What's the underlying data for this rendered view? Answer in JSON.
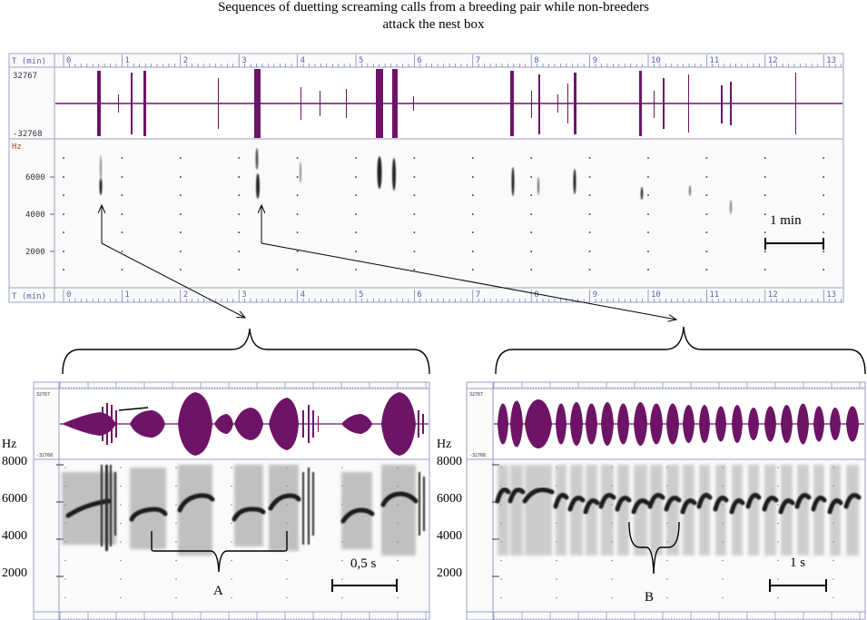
{
  "title": {
    "line1": "Sequences of duetting screaming calls from a breeding pair while non-breeders",
    "line2": "attack the nest box"
  },
  "overview": {
    "time_axis_label": "T (min)",
    "time_ticks": [
      "0",
      "1",
      "2",
      "3",
      "4",
      "5",
      "6",
      "7",
      "8",
      "9",
      "10",
      "11",
      "12",
      "13"
    ],
    "amp_max": "32767",
    "amp_min": "-32768",
    "freq_unit": "Hz",
    "freq_ticks": [
      "6000",
      "4000",
      "2000"
    ],
    "scale_bar": "1 min"
  },
  "panel_a": {
    "amp_max": "32767",
    "amp_min": "-32768",
    "freq_unit": "Hz",
    "freq_ticks": [
      "8000",
      "6000",
      "4000",
      "2000"
    ],
    "scale_bar": "0,5 s",
    "bracket_label": "A"
  },
  "panel_b": {
    "amp_max": "32767",
    "amp_min": "-32768",
    "freq_unit": "Hz",
    "freq_ticks": [
      "8000",
      "6000",
      "4000",
      "2000"
    ],
    "scale_bar": "1 s",
    "bracket_label": "B"
  },
  "colors": {
    "waveform": "#6e1466",
    "axis_blue": "#5b63a8",
    "spectrogram_ink": "#1a1a1a"
  }
}
